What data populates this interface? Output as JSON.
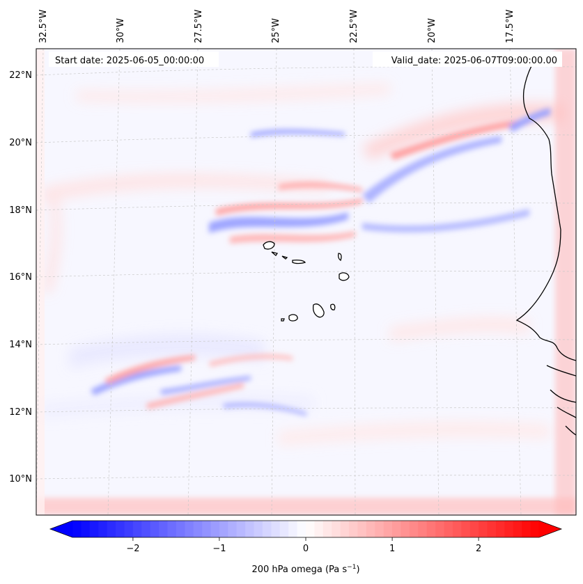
{
  "map": {
    "start_date_label": "Start date: 2025-06-05_00:00:00",
    "valid_date_label": "Valid_date: 2025-06-07T09:00:00.00",
    "lon_labels": [
      "32.5°W",
      "30°W",
      "27.5°W",
      "25°W",
      "22.5°W",
      "20°W",
      "17.5°W"
    ],
    "lat_labels": [
      "22°N",
      "20°N",
      "18°N",
      "16°N",
      "14°N",
      "12°N",
      "10°N"
    ],
    "field": "200 hPa omega"
  },
  "colorbar": {
    "label_main": "200 hPa omega (Pa s",
    "label_sup": "−1",
    "label_end": ")",
    "ticks": [
      "−2",
      "−1",
      "0",
      "1",
      "2"
    ],
    "tick_values": [
      -2,
      -1,
      0,
      1,
      2
    ],
    "range": [
      -2.7,
      2.7
    ],
    "extend": "both",
    "colormap": "bwr",
    "color_min": "#0000ff",
    "color_mid": "#ffffff",
    "color_max": "#ff0000"
  }
}
